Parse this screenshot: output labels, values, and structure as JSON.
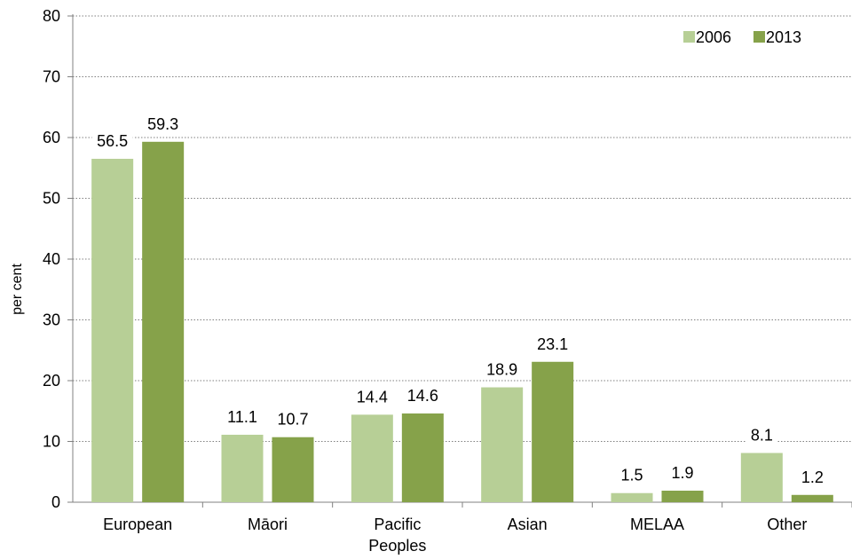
{
  "chart_data": {
    "type": "bar",
    "title": "",
    "xlabel": "",
    "ylabel": "per cent",
    "ylim": [
      0,
      80
    ],
    "yticks": [
      0,
      10,
      20,
      30,
      40,
      50,
      60,
      70,
      80
    ],
    "grid": true,
    "legend_position": "top-right",
    "categories": [
      [
        "European"
      ],
      [
        "Māori"
      ],
      [
        "Pacific",
        "Peoples"
      ],
      [
        "Asian"
      ],
      [
        "MELAA"
      ],
      [
        "Other"
      ]
    ],
    "series": [
      {
        "name": "2006",
        "color": "#b7cf96",
        "values": [
          56.5,
          11.1,
          14.4,
          18.9,
          1.5,
          8.1
        ],
        "labels": [
          "56.5",
          "11.1",
          "14.4",
          "18.9",
          "1.5",
          "8.1"
        ]
      },
      {
        "name": "2013",
        "color": "#86a24a",
        "values": [
          59.3,
          10.7,
          14.6,
          23.1,
          1.9,
          1.2
        ],
        "labels": [
          "59.3",
          "10.7",
          "14.6",
          "23.1",
          "1.9",
          "1.2"
        ]
      }
    ]
  }
}
